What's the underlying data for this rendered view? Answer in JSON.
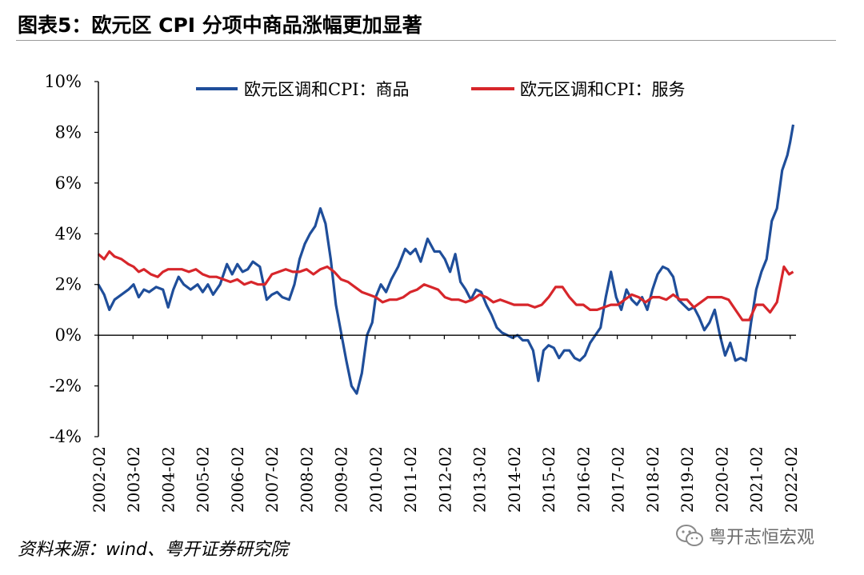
{
  "figure": {
    "title": "图表5：欧元区 CPI 分项中商品涨幅更加显著",
    "source": "资料来源：wind、粤开证券研究院",
    "watermark": "粤开志恒宏观"
  },
  "colors": {
    "series_goods": "#1f4e9a",
    "series_services": "#d7262b",
    "axis": "#000000",
    "rule": "#9a9a9a"
  },
  "chart_data": {
    "type": "line",
    "title": "",
    "xlabel": "",
    "ylabel": "",
    "ylim": [
      -4,
      10
    ],
    "yticks": [
      -4,
      -2,
      0,
      2,
      4,
      6,
      8,
      10
    ],
    "ytick_labels": [
      "-4%",
      "-2%",
      "0%",
      "2%",
      "4%",
      "6%",
      "8%",
      "10%"
    ],
    "xlim": [
      2002.0833,
      2022.25
    ],
    "xtick_labels": [
      "2002-02",
      "2003-02",
      "2004-02",
      "2005-02",
      "2006-02",
      "2007-02",
      "2008-02",
      "2009-02",
      "2010-02",
      "2011-02",
      "2012-02",
      "2013-02",
      "2014-02",
      "2015-02",
      "2016-02",
      "2017-02",
      "2018-02",
      "2019-02",
      "2020-02",
      "2021-02",
      "2022-02"
    ],
    "xtick_values": [
      2002.0833,
      2003.0833,
      2004.0833,
      2005.0833,
      2006.0833,
      2007.0833,
      2008.0833,
      2009.0833,
      2010.0833,
      2011.0833,
      2012.0833,
      2013.0833,
      2014.0833,
      2015.0833,
      2016.0833,
      2017.0833,
      2018.0833,
      2019.0833,
      2020.0833,
      2021.0833,
      2022.0833
    ],
    "grid": false,
    "legend_position": "top",
    "series": [
      {
        "name": "欧元区调和CPI：商品",
        "color": "#1f4e9a",
        "x": [
          2002.08,
          2002.25,
          2002.4,
          2002.55,
          2002.75,
          2002.95,
          2003.1,
          2003.25,
          2003.4,
          2003.55,
          2003.75,
          2003.95,
          2004.1,
          2004.25,
          2004.4,
          2004.55,
          2004.75,
          2004.95,
          2005.1,
          2005.25,
          2005.4,
          2005.6,
          2005.8,
          2005.95,
          2006.1,
          2006.25,
          2006.4,
          2006.55,
          2006.75,
          2006.95,
          2007.1,
          2007.25,
          2007.4,
          2007.6,
          2007.75,
          2007.9,
          2008.05,
          2008.2,
          2008.35,
          2008.5,
          2008.65,
          2008.8,
          2008.95,
          2009.1,
          2009.25,
          2009.4,
          2009.55,
          2009.7,
          2009.85,
          2010.0,
          2010.1,
          2010.25,
          2010.4,
          2010.55,
          2010.75,
          2010.95,
          2011.1,
          2011.25,
          2011.4,
          2011.6,
          2011.8,
          2011.95,
          2012.1,
          2012.25,
          2012.4,
          2012.55,
          2012.7,
          2012.85,
          2013.0,
          2013.15,
          2013.3,
          2013.45,
          2013.6,
          2013.75,
          2013.9,
          2014.05,
          2014.2,
          2014.35,
          2014.5,
          2014.65,
          2014.8,
          2014.95,
          2015.1,
          2015.25,
          2015.4,
          2015.55,
          2015.7,
          2015.85,
          2016.0,
          2016.15,
          2016.3,
          2016.45,
          2016.6,
          2016.75,
          2016.9,
          2017.05,
          2017.2,
          2017.35,
          2017.5,
          2017.65,
          2017.8,
          2017.95,
          2018.1,
          2018.25,
          2018.4,
          2018.55,
          2018.7,
          2018.85,
          2019.0,
          2019.15,
          2019.3,
          2019.45,
          2019.6,
          2019.75,
          2019.9,
          2020.05,
          2020.2,
          2020.35,
          2020.5,
          2020.65,
          2020.8,
          2020.95,
          2021.1,
          2021.25,
          2021.4,
          2021.55,
          2021.7,
          2021.85,
          2022.0,
          2022.08,
          2022.17
        ],
        "values": [
          2.0,
          1.6,
          1.0,
          1.4,
          1.6,
          1.8,
          2.0,
          1.5,
          1.8,
          1.7,
          1.9,
          1.8,
          1.1,
          1.8,
          2.3,
          2.0,
          1.8,
          2.0,
          1.7,
          2.0,
          1.6,
          2.0,
          2.8,
          2.4,
          2.8,
          2.5,
          2.6,
          2.9,
          2.7,
          1.4,
          1.6,
          1.7,
          1.5,
          1.4,
          2.0,
          3.0,
          3.6,
          4.0,
          4.3,
          5.0,
          4.4,
          3.0,
          1.2,
          0.1,
          -1.0,
          -2.0,
          -2.3,
          -1.5,
          0.0,
          0.5,
          1.5,
          2.0,
          1.7,
          2.2,
          2.7,
          3.4,
          3.2,
          3.4,
          2.9,
          3.8,
          3.3,
          3.3,
          3.0,
          2.5,
          3.2,
          2.1,
          1.8,
          1.4,
          1.8,
          1.7,
          1.2,
          0.8,
          0.3,
          0.1,
          0.0,
          -0.1,
          0.0,
          -0.2,
          -0.2,
          -0.6,
          -1.8,
          -0.6,
          -0.4,
          -0.5,
          -0.9,
          -0.6,
          -0.6,
          -0.9,
          -1.0,
          -0.8,
          -0.3,
          0.0,
          0.3,
          1.5,
          2.5,
          1.5,
          1.0,
          1.8,
          1.4,
          1.2,
          1.5,
          1.0,
          1.8,
          2.4,
          2.7,
          2.6,
          2.3,
          1.4,
          1.2,
          1.0,
          1.1,
          0.7,
          0.2,
          0.5,
          1.0,
          0.0,
          -0.8,
          -0.3,
          -1.0,
          -0.9,
          -1.0,
          0.5,
          1.8,
          2.5,
          3.0,
          4.5,
          5.0,
          6.5,
          7.1,
          7.6,
          8.3
        ]
      },
      {
        "name": "欧元区调和CPI：服务",
        "color": "#d7262b",
        "x": [
          2002.08,
          2002.25,
          2002.4,
          2002.55,
          2002.75,
          2002.95,
          2003.1,
          2003.25,
          2003.4,
          2003.6,
          2003.8,
          2003.95,
          2004.1,
          2004.3,
          2004.5,
          2004.7,
          2004.9,
          2005.1,
          2005.3,
          2005.5,
          2005.7,
          2005.9,
          2006.1,
          2006.3,
          2006.5,
          2006.7,
          2006.9,
          2007.1,
          2007.3,
          2007.5,
          2007.7,
          2007.9,
          2008.1,
          2008.3,
          2008.5,
          2008.7,
          2008.9,
          2009.1,
          2009.3,
          2009.5,
          2009.7,
          2009.9,
          2010.1,
          2010.3,
          2010.5,
          2010.7,
          2010.9,
          2011.1,
          2011.3,
          2011.5,
          2011.7,
          2011.9,
          2012.1,
          2012.3,
          2012.5,
          2012.7,
          2012.9,
          2013.1,
          2013.3,
          2013.5,
          2013.7,
          2013.9,
          2014.1,
          2014.3,
          2014.5,
          2014.7,
          2014.9,
          2015.1,
          2015.3,
          2015.5,
          2015.7,
          2015.9,
          2016.1,
          2016.3,
          2016.5,
          2016.7,
          2016.9,
          2017.1,
          2017.3,
          2017.5,
          2017.7,
          2017.9,
          2018.1,
          2018.3,
          2018.5,
          2018.7,
          2018.9,
          2019.1,
          2019.3,
          2019.5,
          2019.7,
          2019.9,
          2020.1,
          2020.3,
          2020.5,
          2020.7,
          2020.9,
          2021.1,
          2021.3,
          2021.5,
          2021.7,
          2021.9,
          2022.05,
          2022.17
        ],
        "values": [
          3.2,
          3.0,
          3.3,
          3.1,
          3.0,
          2.8,
          2.7,
          2.5,
          2.6,
          2.4,
          2.3,
          2.5,
          2.6,
          2.6,
          2.6,
          2.5,
          2.6,
          2.4,
          2.3,
          2.3,
          2.2,
          2.1,
          2.2,
          2.0,
          2.1,
          2.0,
          2.0,
          2.4,
          2.5,
          2.6,
          2.5,
          2.5,
          2.6,
          2.4,
          2.6,
          2.7,
          2.5,
          2.2,
          2.1,
          1.9,
          1.7,
          1.6,
          1.5,
          1.3,
          1.4,
          1.4,
          1.5,
          1.7,
          1.8,
          2.0,
          1.9,
          1.8,
          1.5,
          1.4,
          1.4,
          1.3,
          1.4,
          1.6,
          1.5,
          1.3,
          1.4,
          1.3,
          1.2,
          1.2,
          1.2,
          1.1,
          1.2,
          1.5,
          1.9,
          1.9,
          1.5,
          1.2,
          1.2,
          1.0,
          1.0,
          1.1,
          1.2,
          1.2,
          1.4,
          1.6,
          1.5,
          1.3,
          1.5,
          1.5,
          1.4,
          1.6,
          1.4,
          1.4,
          1.1,
          1.3,
          1.5,
          1.5,
          1.5,
          1.4,
          1.0,
          0.6,
          0.6,
          1.2,
          1.2,
          0.9,
          1.3,
          2.7,
          2.4,
          2.5
        ]
      }
    ]
  }
}
